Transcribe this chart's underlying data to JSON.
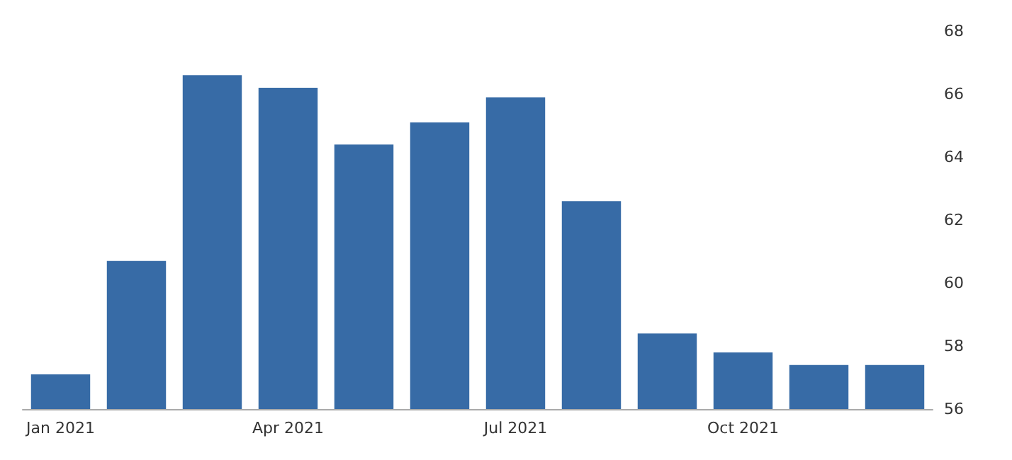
{
  "chart_data": {
    "type": "bar",
    "categories": [
      "Jan 2021",
      null,
      null,
      "Apr 2021",
      null,
      null,
      "Jul 2021",
      null,
      null,
      "Oct 2021",
      null,
      null
    ],
    "values": [
      57.1,
      60.7,
      66.6,
      66.2,
      64.4,
      65.1,
      65.9,
      62.6,
      58.4,
      57.8,
      57.4,
      57.4
    ],
    "color": "#376ba6",
    "ylim": [
      56,
      68
    ],
    "yticks": [
      56,
      58,
      60,
      62,
      64,
      66,
      68
    ]
  }
}
